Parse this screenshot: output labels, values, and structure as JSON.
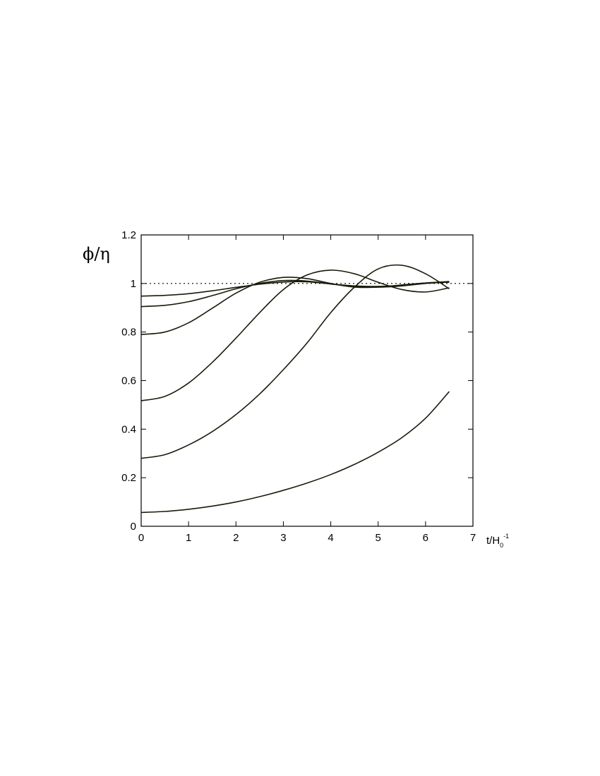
{
  "chart_data": {
    "type": "line",
    "title": "",
    "ylabel": "ϕ/η",
    "xlabel": {
      "main": "t/H",
      "subscript": "0",
      "superscript": "-1"
    },
    "xlim": [
      0,
      7
    ],
    "ylim": [
      0,
      1.2
    ],
    "xticks": [
      "0",
      "1",
      "2",
      "3",
      "4",
      "5",
      "6",
      "7"
    ],
    "yticks": [
      "0",
      "0.2",
      "0.4",
      "0.6",
      "0.8",
      "1",
      "1.2"
    ],
    "grid": false,
    "reference_line": {
      "y": 1,
      "style": "dotted"
    },
    "line_color": "#1a1a0a",
    "series": [
      {
        "x": [
          0,
          0.5,
          1,
          1.5,
          2,
          2.5,
          3,
          3.5,
          4,
          4.5,
          5,
          5.5,
          6,
          6.5
        ],
        "y": [
          0.948,
          0.951,
          0.958,
          0.97,
          0.984,
          0.997,
          1.006,
          1.007,
          0.998,
          0.99,
          0.988,
          0.993,
          1.002,
          1.008
        ]
      },
      {
        "x": [
          0,
          0.5,
          1,
          1.5,
          2,
          2.5,
          3,
          3.5,
          4,
          4.5,
          5,
          5.5,
          6,
          6.5
        ],
        "y": [
          0.905,
          0.91,
          0.925,
          0.95,
          0.978,
          1.0,
          1.012,
          1.01,
          0.998,
          0.988,
          0.985,
          0.99,
          1.0,
          1.006
        ]
      },
      {
        "x": [
          0,
          0.5,
          1,
          1.5,
          2,
          2.5,
          3,
          3.5,
          4,
          4.5,
          5,
          5.5,
          6,
          6.5
        ],
        "y": [
          0.79,
          0.8,
          0.838,
          0.898,
          0.96,
          1.005,
          1.025,
          1.02,
          1.0,
          0.985,
          0.985,
          0.994,
          1.002,
          1.005
        ]
      },
      {
        "x": [
          0,
          0.5,
          1,
          1.5,
          2,
          2.5,
          3,
          3.5,
          4,
          4.5,
          5,
          5.5,
          6,
          6.5
        ],
        "y": [
          0.517,
          0.535,
          0.59,
          0.675,
          0.775,
          0.88,
          0.975,
          1.035,
          1.055,
          1.04,
          1.005,
          0.975,
          0.965,
          0.982
        ]
      },
      {
        "x": [
          0,
          0.5,
          1,
          1.5,
          2,
          2.5,
          3,
          3.5,
          4,
          4.5,
          5,
          5.5,
          6,
          6.5
        ],
        "y": [
          0.28,
          0.295,
          0.335,
          0.39,
          0.46,
          0.545,
          0.645,
          0.755,
          0.88,
          0.985,
          1.06,
          1.075,
          1.04,
          0.978
        ]
      },
      {
        "x": [
          0,
          0.5,
          1,
          1.5,
          2,
          2.5,
          3,
          3.5,
          4,
          4.5,
          5,
          5.5,
          6,
          6.5
        ],
        "y": [
          0.057,
          0.061,
          0.07,
          0.083,
          0.1,
          0.122,
          0.148,
          0.178,
          0.213,
          0.255,
          0.305,
          0.365,
          0.445,
          0.555
        ]
      }
    ]
  }
}
